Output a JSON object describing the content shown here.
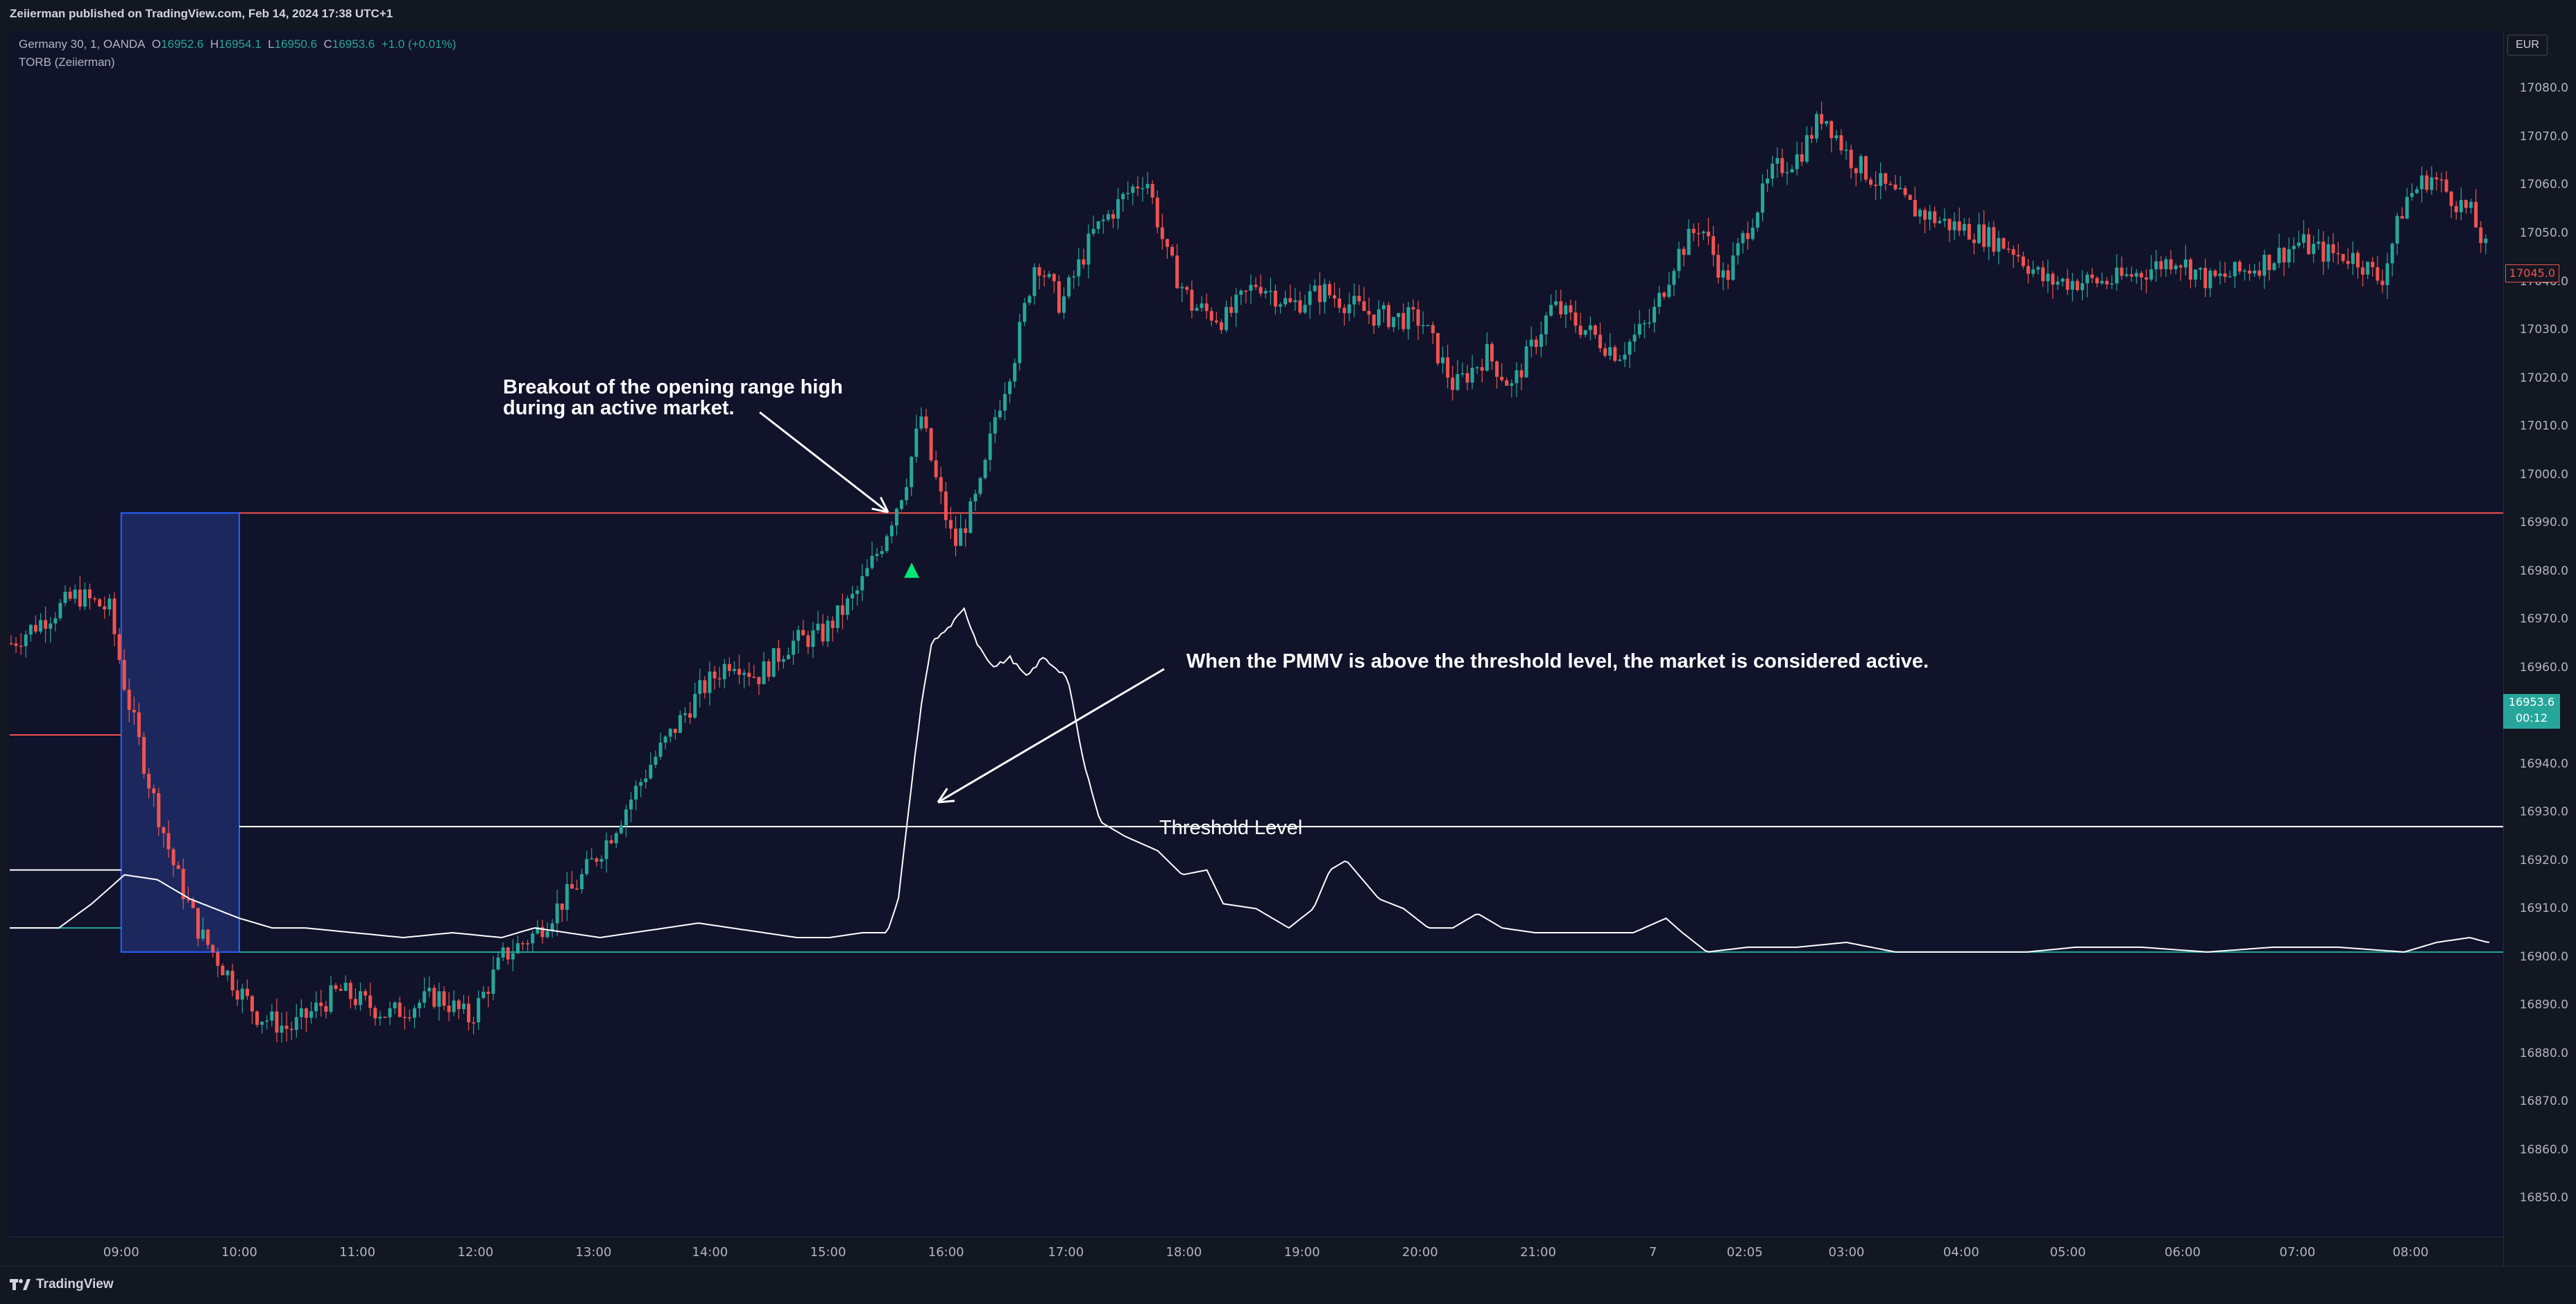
{
  "header": {
    "publish_line": "Zeiierman published on TradingView.com, Feb 14, 2024 17:38 UTC+1"
  },
  "legend": {
    "symbol": "Germany 30, 1, OANDA",
    "o_key": "O",
    "o": "16952.6",
    "h_key": "H",
    "h": "16954.1",
    "l_key": "L",
    "l": "16950.6",
    "c_key": "C",
    "c": "16953.6",
    "change": "+1.0 (+0.01%)",
    "indicator": "TORB (Zeiierman)"
  },
  "annotations": {
    "breakout_line1": "Breakout of the opening range high",
    "breakout_line2": "during an active market.",
    "pmmv": "When the PMMV is above the threshold level, the market is considered active.",
    "threshold": "Threshold Level"
  },
  "price_axis": {
    "currency": "EUR",
    "labels": [
      "17080.0",
      "17070.0",
      "17060.0",
      "17050.0",
      "17040.0",
      "17030.0",
      "17020.0",
      "17010.0",
      "17000.0",
      "16990.0",
      "16980.0",
      "16970.0",
      "16960.0",
      "16940.0",
      "16930.0",
      "16920.0",
      "16910.0",
      "16900.0",
      "16890.0",
      "16880.0",
      "16870.0",
      "16860.0",
      "16850.0"
    ],
    "label_values": [
      17080,
      17070,
      17060,
      17050,
      17040,
      17030,
      17020,
      17010,
      17000,
      16990,
      16980,
      16970,
      16960,
      16940,
      16930,
      16920,
      16910,
      16900,
      16890,
      16880,
      16870,
      16860,
      16850
    ],
    "current_price": "16953.6",
    "countdown": "00:12",
    "other_badge": "17045.0"
  },
  "time_axis": {
    "labels": [
      "09:00",
      "10:00",
      "11:00",
      "12:00",
      "13:00",
      "14:00",
      "15:00",
      "16:00",
      "17:00",
      "18:00",
      "19:00",
      "20:00",
      "21:00",
      "7",
      "02:05",
      "03:00",
      "04:00",
      "05:00",
      "06:00",
      "07:00",
      "08:00"
    ]
  },
  "colors": {
    "background": "#10132a",
    "range_box": "#1f2d66",
    "range_border": "#2962ff",
    "high_line": "#ef5350",
    "low_line": "#26a69a",
    "threshold_line": "#ffffff",
    "up_candle": "#26a69a",
    "down_candle": "#ef5350",
    "signal": "#00e676"
  },
  "footer": {
    "brand": "TradingView"
  },
  "chart_data": {
    "type": "line",
    "price_path": [
      [
        0,
        16965
      ],
      [
        40,
        16975
      ],
      [
        60,
        16972
      ],
      [
        70,
        16955
      ],
      [
        85,
        16935
      ],
      [
        100,
        16918
      ],
      [
        115,
        16905
      ],
      [
        135,
        16895
      ],
      [
        150,
        16888
      ],
      [
        170,
        16885
      ],
      [
        200,
        16893
      ],
      [
        230,
        16888
      ],
      [
        260,
        16892
      ],
      [
        280,
        16887
      ],
      [
        300,
        16900
      ],
      [
        320,
        16905
      ],
      [
        345,
        16915
      ],
      [
        365,
        16925
      ],
      [
        390,
        16940
      ],
      [
        420,
        16955
      ],
      [
        440,
        16962
      ],
      [
        455,
        16958
      ],
      [
        475,
        16965
      ],
      [
        495,
        16967
      ],
      [
        515,
        16975
      ],
      [
        530,
        16985
      ],
      [
        545,
        16998
      ],
      [
        555,
        17012
      ],
      [
        563,
        17000
      ],
      [
        575,
        16985
      ],
      [
        585,
        16992
      ],
      [
        592,
        16998
      ],
      [
        600,
        17012
      ],
      [
        612,
        17025
      ],
      [
        625,
        17045
      ],
      [
        640,
        17035
      ],
      [
        660,
        17050
      ],
      [
        680,
        17058
      ],
      [
        692,
        17062
      ],
      [
        705,
        17045
      ],
      [
        720,
        17035
      ],
      [
        740,
        17032
      ],
      [
        760,
        17040
      ],
      [
        780,
        17035
      ],
      [
        800,
        17038
      ],
      [
        830,
        17033
      ],
      [
        860,
        17032
      ],
      [
        880,
        17018
      ],
      [
        900,
        17025
      ],
      [
        915,
        17018
      ],
      [
        940,
        17035
      ],
      [
        960,
        17030
      ],
      [
        980,
        17025
      ],
      [
        1000,
        17032
      ],
      [
        1015,
        17045
      ],
      [
        1030,
        17052
      ],
      [
        1045,
        17040
      ],
      [
        1060,
        17052
      ],
      [
        1075,
        17063
      ],
      [
        1090,
        17066
      ],
      [
        1105,
        17075
      ],
      [
        1120,
        17066
      ],
      [
        1140,
        17060
      ],
      [
        1160,
        17055
      ],
      [
        1180,
        17052
      ],
      [
        1200,
        17050
      ],
      [
        1220,
        17047
      ],
      [
        1240,
        17040
      ],
      [
        1260,
        17040
      ],
      [
        1280,
        17040
      ],
      [
        1300,
        17042
      ],
      [
        1320,
        17045
      ],
      [
        1340,
        17040
      ],
      [
        1360,
        17042
      ],
      [
        1380,
        17045
      ],
      [
        1395,
        17048
      ],
      [
        1410,
        17046
      ],
      [
        1430,
        17045
      ],
      [
        1445,
        17040
      ],
      [
        1460,
        17057
      ],
      [
        1475,
        17062
      ],
      [
        1490,
        17057
      ],
      [
        1500,
        17054
      ],
      [
        1511,
        17045
      ]
    ],
    "pmmv_path": [
      [
        0,
        16906
      ],
      [
        30,
        16906
      ],
      [
        50,
        16911
      ],
      [
        70,
        16917
      ],
      [
        90,
        16916
      ],
      [
        110,
        16912
      ],
      [
        125,
        16910
      ],
      [
        140,
        16908
      ],
      [
        160,
        16906
      ],
      [
        180,
        16906
      ],
      [
        210,
        16905
      ],
      [
        240,
        16904
      ],
      [
        270,
        16905
      ],
      [
        300,
        16904
      ],
      [
        320,
        16906
      ],
      [
        340,
        16905
      ],
      [
        360,
        16904
      ],
      [
        380,
        16905
      ],
      [
        400,
        16906
      ],
      [
        420,
        16907
      ],
      [
        440,
        16906
      ],
      [
        460,
        16905
      ],
      [
        480,
        16904
      ],
      [
        500,
        16904
      ],
      [
        520,
        16905
      ],
      [
        535,
        16905
      ],
      [
        542,
        16912
      ],
      [
        548,
        16930
      ],
      [
        555,
        16950
      ],
      [
        562,
        16965
      ],
      [
        572,
        16968
      ],
      [
        582,
        16972
      ],
      [
        590,
        16965
      ],
      [
        600,
        16960
      ],
      [
        610,
        16962
      ],
      [
        620,
        16958
      ],
      [
        630,
        16962
      ],
      [
        645,
        16958
      ],
      [
        655,
        16940
      ],
      [
        665,
        16928
      ],
      [
        680,
        16925
      ],
      [
        700,
        16922
      ],
      [
        715,
        16917
      ],
      [
        730,
        16918
      ],
      [
        740,
        16911
      ],
      [
        760,
        16910
      ],
      [
        780,
        16906
      ],
      [
        795,
        16910
      ],
      [
        805,
        16918
      ],
      [
        815,
        16920
      ],
      [
        825,
        16916
      ],
      [
        835,
        16912
      ],
      [
        850,
        16910
      ],
      [
        865,
        16906
      ],
      [
        880,
        16906
      ],
      [
        895,
        16909
      ],
      [
        910,
        16906
      ],
      [
        930,
        16905
      ],
      [
        960,
        16905
      ],
      [
        990,
        16905
      ],
      [
        1010,
        16908
      ],
      [
        1020,
        16905
      ],
      [
        1035,
        16901
      ],
      [
        1060,
        16902
      ],
      [
        1090,
        16902
      ],
      [
        1120,
        16903
      ],
      [
        1150,
        16901
      ],
      [
        1200,
        16901
      ],
      [
        1230,
        16901
      ],
      [
        1260,
        16902
      ],
      [
        1300,
        16902
      ],
      [
        1340,
        16901
      ],
      [
        1380,
        16902
      ],
      [
        1420,
        16902
      ],
      [
        1460,
        16901
      ],
      [
        1480,
        16903
      ],
      [
        1500,
        16904
      ],
      [
        1511,
        16903
      ]
    ],
    "opening_range": {
      "high": 16992,
      "low": 16901,
      "start_x": 68,
      "end_x": 140,
      "pre_high": 16946,
      "pre_threshold": 16918,
      "pre_low": 16906
    },
    "threshold_level": 16927,
    "breakout_signal": {
      "x": 550,
      "y": 16980
    },
    "ylim": [
      16842,
      17092
    ],
    "xlim": [
      0,
      1512
    ]
  }
}
